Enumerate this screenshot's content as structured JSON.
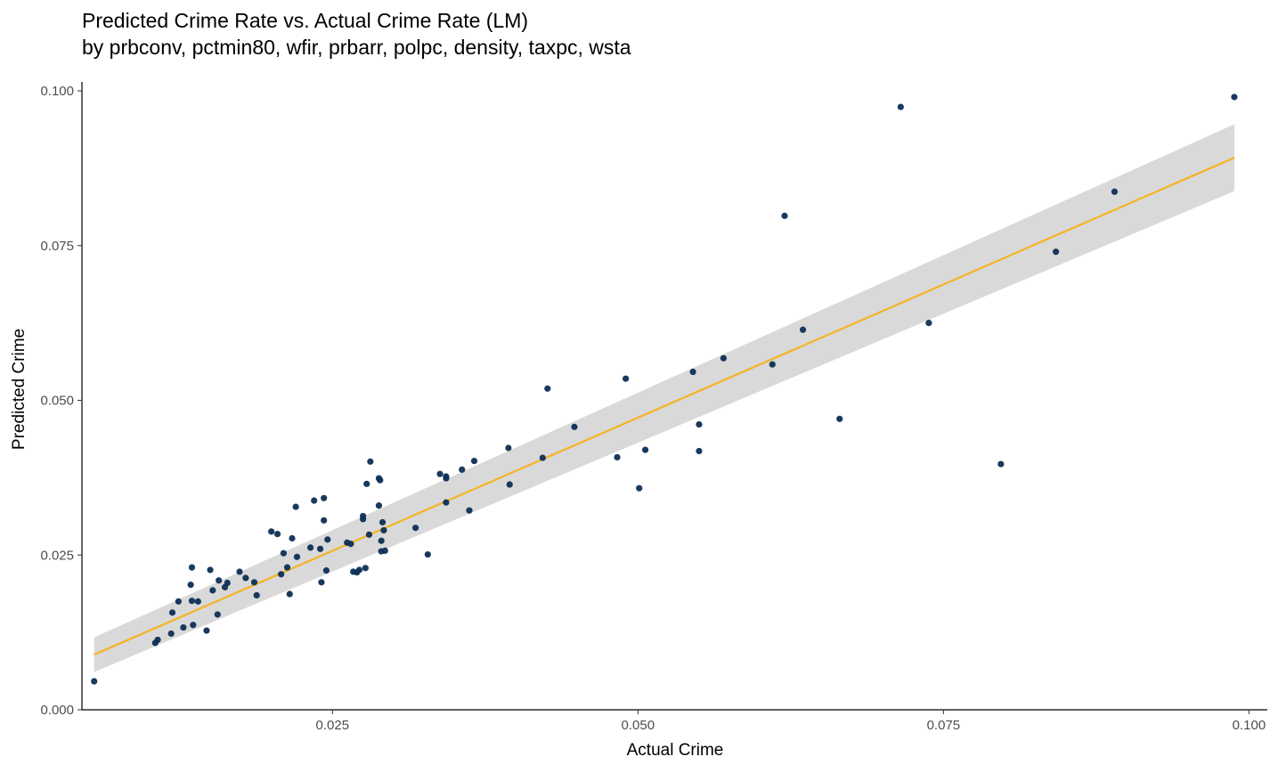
{
  "chart_data": {
    "type": "scatter",
    "title": "Predicted Crime Rate vs. Actual Crime Rate (LM)",
    "subtitle": "by prbconv, pctmin80, wfir, prbarr, polpc, density, taxpc, wsta",
    "xlabel": "Actual Crime",
    "ylabel": "Predicted Crime",
    "xlim": [
      0.0045,
      0.1015
    ],
    "ylim": [
      0.0,
      0.1
    ],
    "x_ticks": [
      0.025,
      0.05,
      0.075,
      0.1
    ],
    "x_tick_labels": [
      "0.025",
      "0.050",
      "0.075",
      "0.100"
    ],
    "y_ticks": [
      0.0,
      0.025,
      0.05,
      0.075,
      0.1
    ],
    "y_tick_labels": [
      "0.000",
      "0.025",
      "0.050",
      "0.075",
      "0.100"
    ],
    "grid": false,
    "point_color": "#0d2f55",
    "fit_line_color": "#f5b324",
    "confidence_band_color": "#d9d9d9",
    "fit": {
      "method": "lm",
      "x": [
        0.0055,
        0.0988
      ],
      "y": [
        0.0089,
        0.0892
      ],
      "band_lower": [
        0.0061,
        0.0838
      ],
      "band_upper": [
        0.0117,
        0.0946
      ]
    },
    "series": [
      {
        "points": [
          [
            0.0055,
            0.0046
          ],
          [
            0.0105,
            0.0108
          ],
          [
            0.0107,
            0.0113
          ],
          [
            0.0118,
            0.0123
          ],
          [
            0.0119,
            0.0157
          ],
          [
            0.0124,
            0.0175
          ],
          [
            0.0128,
            0.0133
          ],
          [
            0.0134,
            0.0202
          ],
          [
            0.0135,
            0.023
          ],
          [
            0.0135,
            0.0176
          ],
          [
            0.0136,
            0.0137
          ],
          [
            0.014,
            0.0175
          ],
          [
            0.0147,
            0.0128
          ],
          [
            0.015,
            0.0226
          ],
          [
            0.0152,
            0.0193
          ],
          [
            0.0156,
            0.0154
          ],
          [
            0.0157,
            0.0209
          ],
          [
            0.0162,
            0.0198
          ],
          [
            0.0164,
            0.0205
          ],
          [
            0.0174,
            0.0223
          ],
          [
            0.0179,
            0.0213
          ],
          [
            0.0186,
            0.0206
          ],
          [
            0.0188,
            0.0185
          ],
          [
            0.02,
            0.0288
          ],
          [
            0.0205,
            0.0284
          ],
          [
            0.0208,
            0.0219
          ],
          [
            0.021,
            0.0253
          ],
          [
            0.0213,
            0.023
          ],
          [
            0.0215,
            0.0187
          ],
          [
            0.0217,
            0.0277
          ],
          [
            0.022,
            0.0328
          ],
          [
            0.0221,
            0.0247
          ],
          [
            0.0232,
            0.0262
          ],
          [
            0.0235,
            0.0338
          ],
          [
            0.024,
            0.026
          ],
          [
            0.0241,
            0.0206
          ],
          [
            0.0243,
            0.0342
          ],
          [
            0.0243,
            0.0306
          ],
          [
            0.0245,
            0.0225
          ],
          [
            0.0246,
            0.0275
          ],
          [
            0.0262,
            0.027
          ],
          [
            0.0265,
            0.0268
          ],
          [
            0.0267,
            0.0223
          ],
          [
            0.027,
            0.0222
          ],
          [
            0.0272,
            0.0226
          ],
          [
            0.0275,
            0.0313
          ],
          [
            0.0275,
            0.0308
          ],
          [
            0.0277,
            0.0229
          ],
          [
            0.0278,
            0.0365
          ],
          [
            0.028,
            0.0283
          ],
          [
            0.0281,
            0.0401
          ],
          [
            0.0288,
            0.033
          ],
          [
            0.0288,
            0.0374
          ],
          [
            0.0289,
            0.0371
          ],
          [
            0.029,
            0.0273
          ],
          [
            0.029,
            0.0256
          ],
          [
            0.0291,
            0.0303
          ],
          [
            0.0292,
            0.029
          ],
          [
            0.0293,
            0.0257
          ],
          [
            0.0318,
            0.0294
          ],
          [
            0.0328,
            0.0251
          ],
          [
            0.0338,
            0.0381
          ],
          [
            0.0343,
            0.0377
          ],
          [
            0.0343,
            0.0374
          ],
          [
            0.0343,
            0.0335
          ],
          [
            0.0356,
            0.0388
          ],
          [
            0.0362,
            0.0322
          ],
          [
            0.0366,
            0.0402
          ],
          [
            0.0394,
            0.0423
          ],
          [
            0.0395,
            0.0364
          ],
          [
            0.0422,
            0.0407
          ],
          [
            0.0426,
            0.0519
          ],
          [
            0.0448,
            0.0457
          ],
          [
            0.0483,
            0.0408
          ],
          [
            0.049,
            0.0535
          ],
          [
            0.0501,
            0.0358
          ],
          [
            0.0506,
            0.042
          ],
          [
            0.0545,
            0.0546
          ],
          [
            0.055,
            0.0461
          ],
          [
            0.055,
            0.0418
          ],
          [
            0.057,
            0.0568
          ],
          [
            0.061,
            0.0558
          ],
          [
            0.062,
            0.0798
          ],
          [
            0.0635,
            0.0614
          ],
          [
            0.0665,
            0.047
          ],
          [
            0.0715,
            0.0974
          ],
          [
            0.0738,
            0.0625
          ],
          [
            0.0797,
            0.0397
          ],
          [
            0.0842,
            0.074
          ],
          [
            0.089,
            0.0837
          ],
          [
            0.0988,
            0.099
          ]
        ]
      }
    ]
  }
}
